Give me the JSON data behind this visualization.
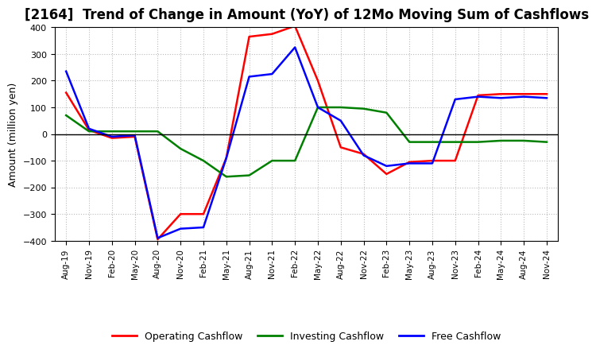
{
  "title": "[2164]  Trend of Change in Amount (YoY) of 12Mo Moving Sum of Cashflows",
  "ylabel": "Amount (million yen)",
  "ylim": [
    -400,
    400
  ],
  "yticks": [
    -400,
    -300,
    -200,
    -100,
    0,
    100,
    200,
    300,
    400
  ],
  "x_labels": [
    "Aug-19",
    "Nov-19",
    "Feb-20",
    "May-20",
    "Aug-20",
    "Nov-20",
    "Feb-21",
    "May-21",
    "Aug-21",
    "Nov-21",
    "Feb-22",
    "May-22",
    "Aug-22",
    "Nov-22",
    "Feb-23",
    "May-23",
    "Aug-23",
    "Nov-23",
    "Feb-24",
    "May-24",
    "Aug-24",
    "Nov-24"
  ],
  "operating": [
    155,
    15,
    -15,
    -10,
    -395,
    -300,
    -300,
    -90,
    365,
    375,
    405,
    200,
    -50,
    -75,
    -150,
    -105,
    -100,
    -100,
    145,
    150,
    150,
    150
  ],
  "investing": [
    70,
    10,
    10,
    10,
    10,
    -55,
    -100,
    -160,
    -155,
    -100,
    -100,
    100,
    100,
    95,
    80,
    -30,
    -30,
    -30,
    -30,
    -25,
    -25,
    -30
  ],
  "free": [
    235,
    20,
    -10,
    -5,
    -390,
    -355,
    -350,
    -90,
    215,
    225,
    325,
    100,
    50,
    -80,
    -120,
    -110,
    -110,
    130,
    140,
    135,
    140,
    135
  ],
  "op_color": "#ff0000",
  "inv_color": "#008000",
  "free_color": "#0000ff",
  "bg_color": "#ffffff",
  "grid_color": "#bbbbbb",
  "linewidth": 1.8,
  "title_fontsize": 12,
  "legend_labels": [
    "Operating Cashflow",
    "Investing Cashflow",
    "Free Cashflow"
  ]
}
